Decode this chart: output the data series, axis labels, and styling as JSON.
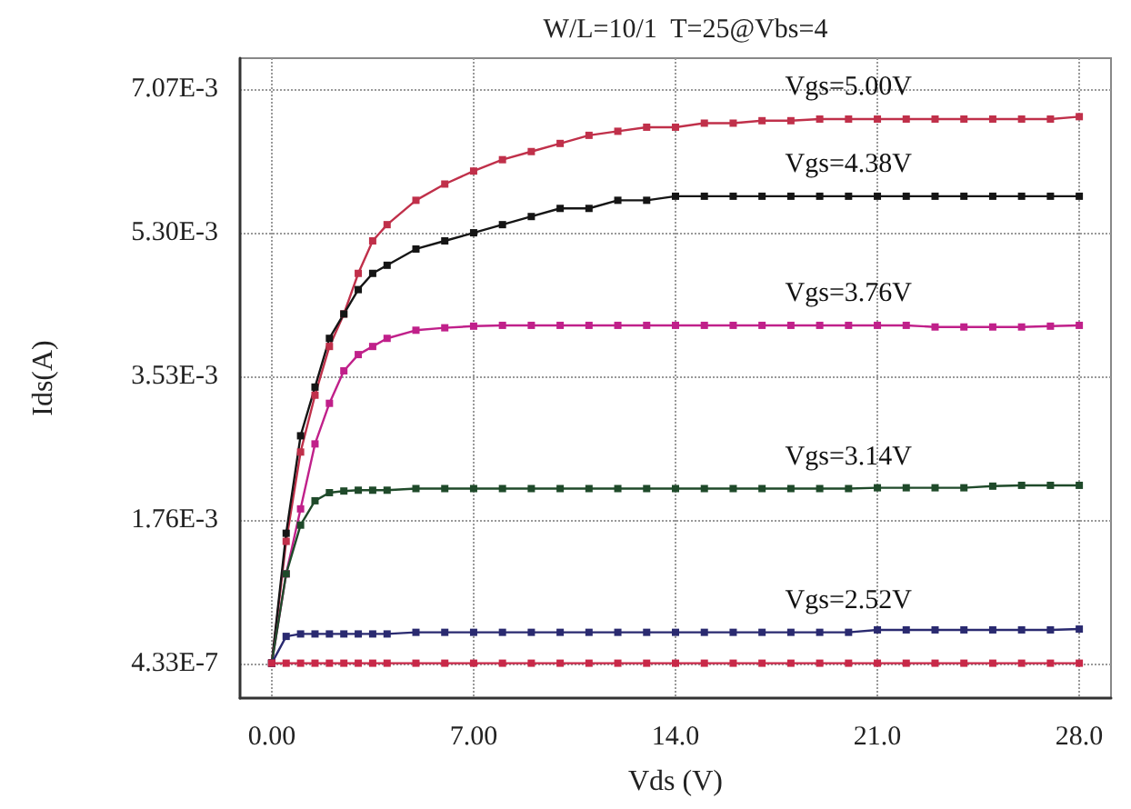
{
  "chart_data": {
    "type": "line",
    "title": "W/L=10/1  T=25@Vbs=4",
    "xlabel": "Vds (V)",
    "ylabel": "Ids(A)",
    "x": [
      0,
      0.5,
      1,
      1.5,
      2,
      2.5,
      3,
      3.5,
      4,
      5,
      6,
      7,
      8,
      9,
      10,
      11,
      12,
      13,
      14,
      15,
      16,
      17,
      18,
      19,
      20,
      21,
      22,
      23,
      24,
      25,
      26,
      27,
      28
    ],
    "series": [
      {
        "name": "Vgs=5.00V",
        "color": "#c0304a",
        "values": [
          0,
          0.0015,
          0.0026,
          0.0033,
          0.0039,
          0.0043,
          0.0048,
          0.0052,
          0.0054,
          0.0057,
          0.0059,
          0.00606,
          0.0062,
          0.0063,
          0.0064,
          0.0065,
          0.00655,
          0.0066,
          0.0066,
          0.00665,
          0.00665,
          0.00668,
          0.00668,
          0.0067,
          0.0067,
          0.0067,
          0.0067,
          0.0067,
          0.0067,
          0.0067,
          0.0067,
          0.0067,
          0.00673
        ]
      },
      {
        "name": "Vgs=4.38V",
        "color": "#151515",
        "values": [
          0,
          0.0016,
          0.0028,
          0.0034,
          0.004,
          0.0043,
          0.0046,
          0.0048,
          0.0049,
          0.0051,
          0.0052,
          0.0053,
          0.0054,
          0.0055,
          0.0056,
          0.0056,
          0.0057,
          0.0057,
          0.00575,
          0.00575,
          0.00575,
          0.00575,
          0.00575,
          0.00575,
          0.00575,
          0.00575,
          0.00575,
          0.00575,
          0.00575,
          0.00575,
          0.00575,
          0.00575,
          0.00575
        ]
      },
      {
        "name": "Vgs=3.76V",
        "color": "#c0208a",
        "values": [
          0,
          0.0011,
          0.0019,
          0.0027,
          0.0032,
          0.0036,
          0.0038,
          0.0039,
          0.004,
          0.0041,
          0.00413,
          0.00415,
          0.00416,
          0.00416,
          0.00416,
          0.00416,
          0.00416,
          0.00416,
          0.00416,
          0.00416,
          0.00416,
          0.00416,
          0.00416,
          0.00416,
          0.00416,
          0.00416,
          0.00416,
          0.00414,
          0.00414,
          0.00414,
          0.00414,
          0.00415,
          0.00416
        ]
      },
      {
        "name": "Vgs=3.14V",
        "color": "#1f4a2a",
        "values": [
          0,
          0.0011,
          0.0017,
          0.002,
          0.0021,
          0.00212,
          0.00213,
          0.00213,
          0.00213,
          0.00215,
          0.00215,
          0.00215,
          0.00215,
          0.00215,
          0.00215,
          0.00215,
          0.00215,
          0.00215,
          0.00215,
          0.00215,
          0.00215,
          0.00215,
          0.00215,
          0.00215,
          0.00215,
          0.00216,
          0.00216,
          0.00216,
          0.00216,
          0.00218,
          0.00219,
          0.00219,
          0.00219
        ]
      },
      {
        "name": "Vgs=2.52V",
        "color": "#2a2a70",
        "values": [
          0,
          0.00033,
          0.00036,
          0.00036,
          0.00036,
          0.00036,
          0.00036,
          0.00036,
          0.00036,
          0.00038,
          0.00038,
          0.00038,
          0.00038,
          0.00038,
          0.00038,
          0.00038,
          0.00038,
          0.00038,
          0.00038,
          0.00038,
          0.00038,
          0.00038,
          0.00038,
          0.00038,
          0.00038,
          0.00041,
          0.00041,
          0.00041,
          0.00041,
          0.00041,
          0.00041,
          0.00041,
          0.00042
        ]
      },
      {
        "color": "#c82848",
        "values": [
          0,
          0,
          0,
          0,
          0,
          0,
          0,
          0,
          0,
          0,
          0,
          0,
          0,
          0,
          0,
          0,
          0,
          0,
          0,
          0,
          0,
          0,
          0,
          0,
          0,
          0,
          0,
          0,
          0,
          0,
          0,
          0,
          0
        ]
      }
    ],
    "xlim": [
      -1.1,
      29.1
    ],
    "xticks": [
      {
        "value": 0,
        "label": "0.00"
      },
      {
        "value": 7,
        "label": "7.00"
      },
      {
        "value": 14,
        "label": "14.0"
      },
      {
        "value": 21,
        "label": "21.0"
      },
      {
        "value": 28,
        "label": "28.0"
      }
    ],
    "ylim": [
      -0.00043,
      0.00745
    ],
    "yticks": [
      {
        "value": 4.33e-07,
        "label": "4.33E-7"
      },
      {
        "value": 0.00176,
        "label": "1.76E-3"
      },
      {
        "value": 0.00353,
        "label": "3.53E-3"
      },
      {
        "value": 0.0053,
        "label": "5.30E-3"
      },
      {
        "value": 0.00707,
        "label": "7.07E-3"
      }
    ],
    "grid": true,
    "marker": "square",
    "line_style": "solid",
    "legend": false
  }
}
